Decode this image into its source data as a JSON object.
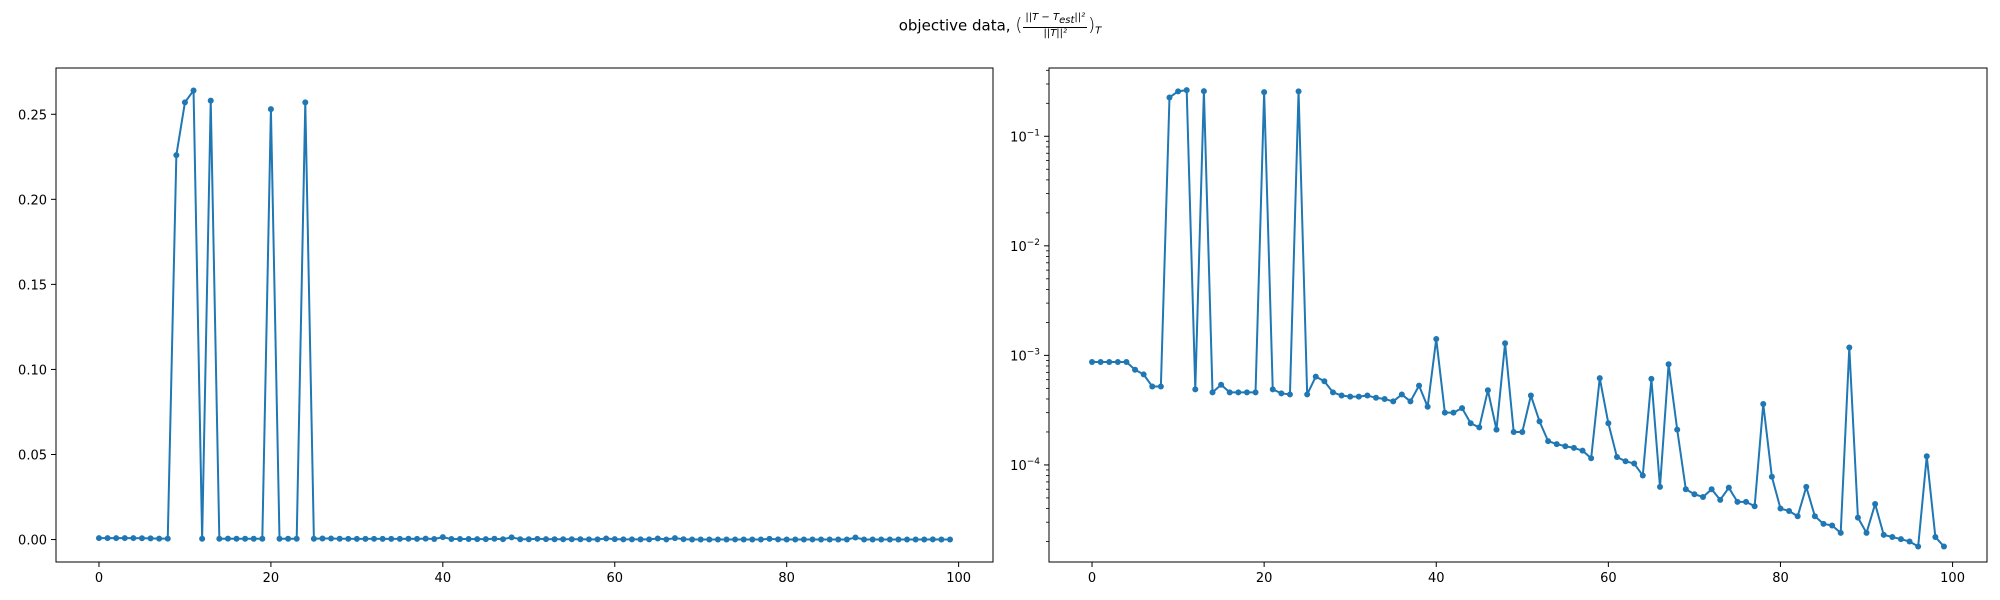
{
  "title": {
    "prefix": "objective data,",
    "open": "(",
    "numerator": "||T − T",
    "numerator_sub": "est",
    "numerator_tail": "||²",
    "denominator": "||T||²",
    "close": ")",
    "subscript": "T"
  },
  "chart_data": [
    {
      "type": "line",
      "marker": "dot",
      "color": "#1f77b4",
      "grid": false,
      "yscale": "linear",
      "xlim": [
        -5,
        104
      ],
      "ylim": [
        -0.0132,
        0.2772
      ],
      "xticks": [
        0,
        20,
        40,
        60,
        80,
        100
      ],
      "xtick_labels": [
        "0",
        "20",
        "40",
        "60",
        "80",
        "100"
      ],
      "yticks": [
        0,
        0.05,
        0.1,
        0.15,
        0.2,
        0.25
      ],
      "ytick_labels": [
        "0.00",
        "0.05",
        "0.10",
        "0.15",
        "0.20",
        "0.25"
      ],
      "series": [
        {
          "x": [
            0,
            1,
            2,
            3,
            4,
            5,
            6,
            7,
            8,
            9,
            10,
            11,
            12,
            13,
            14,
            15,
            16,
            17,
            18,
            19,
            20,
            21,
            22,
            23,
            24,
            25,
            26,
            27,
            28,
            29,
            30,
            31,
            32,
            33,
            34,
            35,
            36,
            37,
            38,
            39,
            40,
            41,
            42,
            43,
            44,
            45,
            46,
            47,
            48,
            49,
            50,
            51,
            52,
            53,
            54,
            55,
            56,
            57,
            58,
            59,
            60,
            61,
            62,
            63,
            64,
            65,
            66,
            67,
            68,
            69,
            70,
            71,
            72,
            73,
            74,
            75,
            76,
            77,
            78,
            79,
            80,
            81,
            82,
            83,
            84,
            85,
            86,
            87,
            88,
            89,
            90,
            91,
            92,
            93,
            94,
            95,
            96,
            97,
            98,
            99
          ],
          "y": [
            0.00087,
            0.00087,
            0.00087,
            0.00087,
            0.00087,
            0.00074,
            0.00067,
            0.00052,
            0.00052,
            0.226,
            0.257,
            0.264,
            0.00049,
            0.258,
            0.00046,
            0.00054,
            0.00046,
            0.00046,
            0.00046,
            0.00046,
            0.253,
            0.00049,
            0.00045,
            0.00044,
            0.257,
            0.00044,
            0.00064,
            0.00058,
            0.00046,
            0.00043,
            0.00042,
            0.00042,
            0.00043,
            0.00041,
            0.0004,
            0.00038,
            0.00044,
            0.00038,
            0.00053,
            0.00034,
            0.00141,
            0.0003,
            0.0003,
            0.00033,
            0.00024,
            0.00022,
            0.00048,
            0.00021,
            0.00129,
            0.0002,
            0.0002,
            0.00043,
            0.00025,
            0.000165,
            0.000155,
            0.000148,
            0.000143,
            0.000135,
            0.000115,
            0.00062,
            0.00024,
            0.000118,
            0.000108,
            0.000103,
            8e-05,
            0.00061,
            6.3e-05,
            0.00083,
            0.00021,
            6e-05,
            5.4e-05,
            5.1e-05,
            6e-05,
            4.8e-05,
            6.2e-05,
            4.6e-05,
            4.6e-05,
            4.2e-05,
            0.00036,
            7.8e-05,
            4e-05,
            3.8e-05,
            3.4e-05,
            6.3e-05,
            3.4e-05,
            2.9e-05,
            2.8e-05,
            2.4e-05,
            0.00118,
            3.3e-05,
            2.4e-05,
            4.4e-05,
            2.3e-05,
            2.2e-05,
            2.1e-05,
            2e-05,
            1.8e-05,
            0.00012,
            2.2e-05,
            1.8e-05
          ]
        }
      ]
    },
    {
      "type": "line",
      "marker": "dot",
      "color": "#1f77b4",
      "grid": false,
      "yscale": "log",
      "xlim": [
        -5,
        104
      ],
      "ylim": [
        1.3e-05,
        0.42
      ],
      "xticks": [
        0,
        20,
        40,
        60,
        80,
        100
      ],
      "xtick_labels": [
        "0",
        "20",
        "40",
        "60",
        "80",
        "100"
      ],
      "yticks": [
        0.0001,
        0.001,
        0.01,
        0.1
      ],
      "ytick_base": "10",
      "ytick_exponents": [
        "−4",
        "−3",
        "−2",
        "−1"
      ],
      "series": [
        {
          "x": [
            0,
            1,
            2,
            3,
            4,
            5,
            6,
            7,
            8,
            9,
            10,
            11,
            12,
            13,
            14,
            15,
            16,
            17,
            18,
            19,
            20,
            21,
            22,
            23,
            24,
            25,
            26,
            27,
            28,
            29,
            30,
            31,
            32,
            33,
            34,
            35,
            36,
            37,
            38,
            39,
            40,
            41,
            42,
            43,
            44,
            45,
            46,
            47,
            48,
            49,
            50,
            51,
            52,
            53,
            54,
            55,
            56,
            57,
            58,
            59,
            60,
            61,
            62,
            63,
            64,
            65,
            66,
            67,
            68,
            69,
            70,
            71,
            72,
            73,
            74,
            75,
            76,
            77,
            78,
            79,
            80,
            81,
            82,
            83,
            84,
            85,
            86,
            87,
            88,
            89,
            90,
            91,
            92,
            93,
            94,
            95,
            96,
            97,
            98,
            99
          ],
          "y": [
            0.00087,
            0.00087,
            0.00087,
            0.00087,
            0.00087,
            0.00074,
            0.00067,
            0.00052,
            0.00052,
            0.226,
            0.257,
            0.264,
            0.00049,
            0.258,
            0.00046,
            0.00054,
            0.00046,
            0.00046,
            0.00046,
            0.00046,
            0.253,
            0.00049,
            0.00045,
            0.00044,
            0.257,
            0.00044,
            0.00064,
            0.00058,
            0.00046,
            0.00043,
            0.00042,
            0.00042,
            0.00043,
            0.00041,
            0.0004,
            0.00038,
            0.00044,
            0.00038,
            0.00053,
            0.00034,
            0.00141,
            0.0003,
            0.0003,
            0.00033,
            0.00024,
            0.00022,
            0.00048,
            0.00021,
            0.00129,
            0.0002,
            0.0002,
            0.00043,
            0.00025,
            0.000165,
            0.000155,
            0.000148,
            0.000143,
            0.000135,
            0.000115,
            0.00062,
            0.00024,
            0.000118,
            0.000108,
            0.000103,
            8e-05,
            0.00061,
            6.3e-05,
            0.00083,
            0.00021,
            6e-05,
            5.4e-05,
            5.1e-05,
            6e-05,
            4.8e-05,
            6.2e-05,
            4.6e-05,
            4.6e-05,
            4.2e-05,
            0.00036,
            7.8e-05,
            4e-05,
            3.8e-05,
            3.4e-05,
            6.3e-05,
            3.4e-05,
            2.9e-05,
            2.8e-05,
            2.4e-05,
            0.00118,
            3.3e-05,
            2.4e-05,
            4.4e-05,
            2.3e-05,
            2.2e-05,
            2.1e-05,
            2e-05,
            1.8e-05,
            0.00012,
            2.2e-05,
            1.8e-05
          ]
        }
      ]
    }
  ]
}
